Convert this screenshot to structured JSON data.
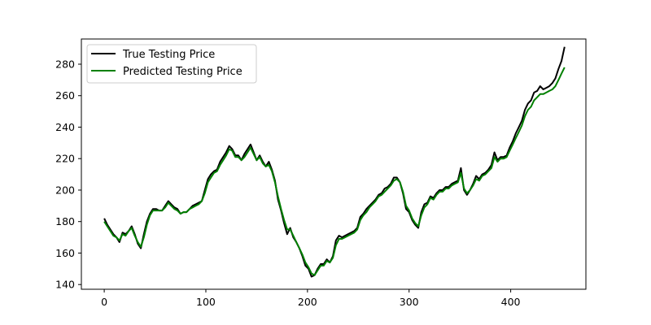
{
  "chart_data": {
    "type": "line",
    "title": "",
    "xlabel": "",
    "ylabel": "",
    "xlim": [
      -22.5,
      474
    ],
    "ylim": [
      137,
      296
    ],
    "x_ticks": [
      0,
      100,
      200,
      300,
      400
    ],
    "y_ticks": [
      140,
      160,
      180,
      200,
      220,
      240,
      260,
      280
    ],
    "grid": false,
    "legend_position": "top-left",
    "series": [
      {
        "name": "True Testing Price",
        "color": "#000000",
        "points": [
          [
            0,
            182
          ],
          [
            3,
            178
          ],
          [
            6,
            175
          ],
          [
            9,
            172
          ],
          [
            12,
            170
          ],
          [
            15,
            167
          ],
          [
            18,
            173
          ],
          [
            21,
            172
          ],
          [
            24,
            174
          ],
          [
            27,
            177
          ],
          [
            30,
            172
          ],
          [
            33,
            166
          ],
          [
            36,
            163
          ],
          [
            39,
            172
          ],
          [
            42,
            180
          ],
          [
            45,
            185
          ],
          [
            48,
            188
          ],
          [
            51,
            188
          ],
          [
            54,
            187
          ],
          [
            57,
            187
          ],
          [
            60,
            190
          ],
          [
            63,
            193
          ],
          [
            66,
            191
          ],
          [
            69,
            189
          ],
          [
            72,
            188
          ],
          [
            75,
            185
          ],
          [
            78,
            186
          ],
          [
            81,
            186
          ],
          [
            84,
            188
          ],
          [
            87,
            190
          ],
          [
            90,
            191
          ],
          [
            93,
            192
          ],
          [
            96,
            193
          ],
          [
            99,
            200
          ],
          [
            102,
            207
          ],
          [
            105,
            210
          ],
          [
            108,
            212
          ],
          [
            111,
            213
          ],
          [
            114,
            218
          ],
          [
            117,
            221
          ],
          [
            120,
            224
          ],
          [
            123,
            228
          ],
          [
            126,
            226
          ],
          [
            129,
            222
          ],
          [
            132,
            222
          ],
          [
            135,
            219
          ],
          [
            138,
            223
          ],
          [
            141,
            226
          ],
          [
            144,
            229
          ],
          [
            147,
            224
          ],
          [
            150,
            219
          ],
          [
            153,
            222
          ],
          [
            156,
            218
          ],
          [
            159,
            215
          ],
          [
            162,
            218
          ],
          [
            165,
            213
          ],
          [
            168,
            206
          ],
          [
            171,
            194
          ],
          [
            174,
            187
          ],
          [
            177,
            179
          ],
          [
            180,
            172
          ],
          [
            183,
            176
          ],
          [
            186,
            170
          ],
          [
            189,
            167
          ],
          [
            192,
            163
          ],
          [
            195,
            158
          ],
          [
            198,
            152
          ],
          [
            201,
            150
          ],
          [
            204,
            145
          ],
          [
            207,
            146
          ],
          [
            210,
            150
          ],
          [
            213,
            153
          ],
          [
            216,
            153
          ],
          [
            219,
            156
          ],
          [
            222,
            154
          ],
          [
            225,
            158
          ],
          [
            228,
            168
          ],
          [
            231,
            171
          ],
          [
            234,
            170
          ],
          [
            237,
            171
          ],
          [
            240,
            172
          ],
          [
            243,
            173
          ],
          [
            246,
            174
          ],
          [
            249,
            176
          ],
          [
            252,
            183
          ],
          [
            255,
            185
          ],
          [
            258,
            188
          ],
          [
            261,
            190
          ],
          [
            264,
            192
          ],
          [
            267,
            194
          ],
          [
            270,
            197
          ],
          [
            273,
            198
          ],
          [
            276,
            201
          ],
          [
            279,
            202
          ],
          [
            282,
            204
          ],
          [
            285,
            208
          ],
          [
            288,
            208
          ],
          [
            291,
            205
          ],
          [
            294,
            198
          ],
          [
            297,
            188
          ],
          [
            300,
            186
          ],
          [
            303,
            181
          ],
          [
            306,
            178
          ],
          [
            309,
            176
          ],
          [
            312,
            186
          ],
          [
            315,
            191
          ],
          [
            318,
            192
          ],
          [
            321,
            196
          ],
          [
            324,
            195
          ],
          [
            327,
            198
          ],
          [
            330,
            200
          ],
          [
            333,
            200
          ],
          [
            336,
            202
          ],
          [
            339,
            202
          ],
          [
            342,
            204
          ],
          [
            345,
            205
          ],
          [
            348,
            206
          ],
          [
            351,
            214
          ],
          [
            354,
            200
          ],
          [
            357,
            197
          ],
          [
            360,
            200
          ],
          [
            363,
            204
          ],
          [
            366,
            209
          ],
          [
            369,
            207
          ],
          [
            372,
            210
          ],
          [
            375,
            211
          ],
          [
            378,
            213
          ],
          [
            381,
            216
          ],
          [
            384,
            224
          ],
          [
            387,
            219
          ],
          [
            390,
            221
          ],
          [
            393,
            221
          ],
          [
            396,
            222
          ],
          [
            399,
            227
          ],
          [
            402,
            231
          ],
          [
            405,
            236
          ],
          [
            408,
            240
          ],
          [
            411,
            244
          ],
          [
            414,
            251
          ],
          [
            417,
            255
          ],
          [
            420,
            257
          ],
          [
            423,
            262
          ],
          [
            426,
            263
          ],
          [
            429,
            266
          ],
          [
            432,
            264
          ],
          [
            435,
            265
          ],
          [
            438,
            266
          ],
          [
            441,
            268
          ],
          [
            444,
            271
          ],
          [
            447,
            277
          ],
          [
            450,
            282
          ],
          [
            453,
            291
          ]
        ]
      },
      {
        "name": "Predicted Testing Price",
        "color": "#008000",
        "points": [
          [
            0,
            180
          ],
          [
            3,
            177
          ],
          [
            6,
            174
          ],
          [
            9,
            171
          ],
          [
            12,
            170
          ],
          [
            15,
            168
          ],
          [
            18,
            172
          ],
          [
            21,
            171
          ],
          [
            24,
            174
          ],
          [
            27,
            176
          ],
          [
            30,
            171
          ],
          [
            33,
            167
          ],
          [
            36,
            164
          ],
          [
            39,
            170
          ],
          [
            42,
            178
          ],
          [
            45,
            184
          ],
          [
            48,
            187
          ],
          [
            51,
            187
          ],
          [
            54,
            187
          ],
          [
            57,
            187
          ],
          [
            60,
            189
          ],
          [
            63,
            192
          ],
          [
            66,
            190
          ],
          [
            69,
            188
          ],
          [
            72,
            187
          ],
          [
            75,
            185
          ],
          [
            78,
            186
          ],
          [
            81,
            186
          ],
          [
            84,
            188
          ],
          [
            87,
            189
          ],
          [
            90,
            190
          ],
          [
            93,
            191
          ],
          [
            96,
            193
          ],
          [
            99,
            198
          ],
          [
            102,
            205
          ],
          [
            105,
            208
          ],
          [
            108,
            211
          ],
          [
            111,
            212
          ],
          [
            114,
            216
          ],
          [
            117,
            219
          ],
          [
            120,
            222
          ],
          [
            123,
            226
          ],
          [
            126,
            225
          ],
          [
            129,
            221
          ],
          [
            132,
            221
          ],
          [
            135,
            219
          ],
          [
            138,
            221
          ],
          [
            141,
            224
          ],
          [
            144,
            227
          ],
          [
            147,
            223
          ],
          [
            150,
            219
          ],
          [
            153,
            221
          ],
          [
            156,
            217
          ],
          [
            159,
            215
          ],
          [
            162,
            216
          ],
          [
            165,
            212
          ],
          [
            168,
            205
          ],
          [
            171,
            196
          ],
          [
            174,
            188
          ],
          [
            177,
            181
          ],
          [
            180,
            175
          ],
          [
            183,
            175
          ],
          [
            186,
            171
          ],
          [
            189,
            167
          ],
          [
            192,
            163
          ],
          [
            195,
            159
          ],
          [
            198,
            154
          ],
          [
            201,
            151
          ],
          [
            204,
            147
          ],
          [
            207,
            146
          ],
          [
            210,
            149
          ],
          [
            213,
            152
          ],
          [
            216,
            152
          ],
          [
            219,
            155
          ],
          [
            222,
            154
          ],
          [
            225,
            157
          ],
          [
            228,
            165
          ],
          [
            231,
            169
          ],
          [
            234,
            169
          ],
          [
            237,
            170
          ],
          [
            240,
            171
          ],
          [
            243,
            172
          ],
          [
            246,
            173
          ],
          [
            249,
            175
          ],
          [
            252,
            181
          ],
          [
            255,
            184
          ],
          [
            258,
            186
          ],
          [
            261,
            189
          ],
          [
            264,
            191
          ],
          [
            267,
            193
          ],
          [
            270,
            196
          ],
          [
            273,
            197
          ],
          [
            276,
            199
          ],
          [
            279,
            201
          ],
          [
            282,
            203
          ],
          [
            285,
            206
          ],
          [
            288,
            207
          ],
          [
            291,
            205
          ],
          [
            294,
            199
          ],
          [
            297,
            190
          ],
          [
            300,
            187
          ],
          [
            303,
            182
          ],
          [
            306,
            179
          ],
          [
            309,
            177
          ],
          [
            312,
            184
          ],
          [
            315,
            189
          ],
          [
            318,
            191
          ],
          [
            321,
            195
          ],
          [
            324,
            194
          ],
          [
            327,
            197
          ],
          [
            330,
            199
          ],
          [
            333,
            199
          ],
          [
            336,
            201
          ],
          [
            339,
            201
          ],
          [
            342,
            203
          ],
          [
            345,
            204
          ],
          [
            348,
            205
          ],
          [
            351,
            211
          ],
          [
            354,
            201
          ],
          [
            357,
            198
          ],
          [
            360,
            200
          ],
          [
            363,
            203
          ],
          [
            366,
            207
          ],
          [
            369,
            206
          ],
          [
            372,
            209
          ],
          [
            375,
            210
          ],
          [
            378,
            212
          ],
          [
            381,
            214
          ],
          [
            384,
            221
          ],
          [
            387,
            218
          ],
          [
            390,
            220
          ],
          [
            393,
            220
          ],
          [
            396,
            221
          ],
          [
            399,
            225
          ],
          [
            402,
            229
          ],
          [
            405,
            233
          ],
          [
            408,
            237
          ],
          [
            411,
            241
          ],
          [
            414,
            247
          ],
          [
            417,
            251
          ],
          [
            420,
            253
          ],
          [
            423,
            257
          ],
          [
            426,
            259
          ],
          [
            429,
            261
          ],
          [
            432,
            261
          ],
          [
            435,
            262
          ],
          [
            438,
            263
          ],
          [
            441,
            264
          ],
          [
            444,
            266
          ],
          [
            447,
            270
          ],
          [
            450,
            274
          ],
          [
            453,
            278
          ]
        ]
      }
    ]
  }
}
